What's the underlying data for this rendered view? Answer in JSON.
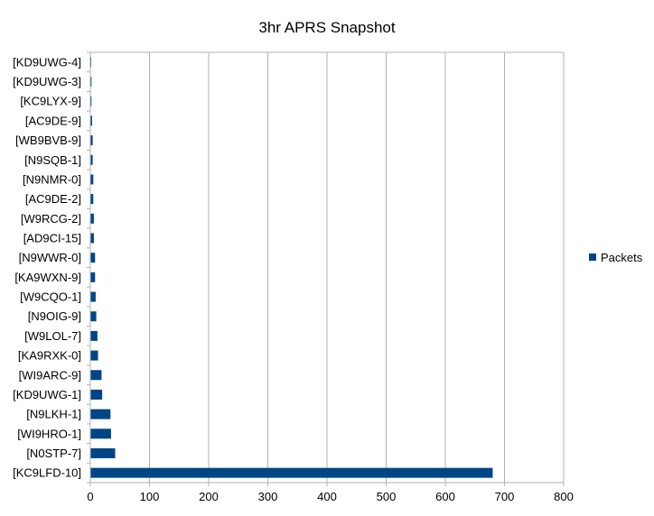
{
  "chart_data": {
    "type": "bar",
    "orientation": "horizontal",
    "title": "3hr APRS Snapshot",
    "xlabel": "",
    "ylabel": "",
    "categories": [
      "[KD9UWG-4]",
      "[KD9UWG-3]",
      "[KC9LYX-9]",
      "[AC9DE-9]",
      "[WB9BVB-9]",
      "[N9SQB-1]",
      "[N9NMR-0]",
      "[AC9DE-2]",
      "[W9RCG-2]",
      "[AD9CI-15]",
      "[N9WWR-0]",
      "[KA9WXN-9]",
      "[W9CQO-1]",
      "[N9OIG-9]",
      "[W9LOL-7]",
      "[KA9RXK-0]",
      "[WI9ARC-9]",
      "[KD9UWG-1]",
      "[N9LKH-1]",
      "[WI9HRO-1]",
      "[N0STP-7]",
      "[KC9LFD-10]"
    ],
    "series": [
      {
        "name": "Packets",
        "color": "#004586",
        "values": [
          1,
          2,
          2,
          3,
          4,
          4,
          5,
          5,
          6,
          6,
          8,
          8,
          9,
          10,
          12,
          13,
          19,
          20,
          34,
          35,
          42,
          680
        ]
      }
    ],
    "xlim": [
      0,
      800
    ],
    "xticks": [
      0,
      100,
      200,
      300,
      400,
      500,
      600,
      700,
      800
    ],
    "grid": true,
    "legend_position": "right"
  }
}
